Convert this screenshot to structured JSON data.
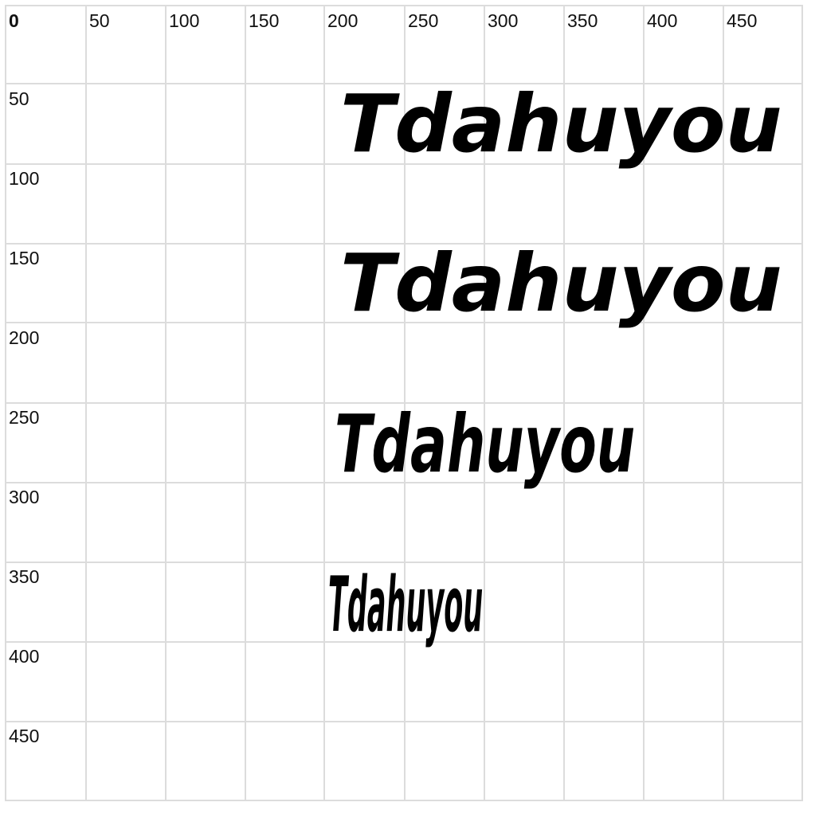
{
  "grid": {
    "x_ticks": [
      "0",
      "50",
      "100",
      "150",
      "200",
      "250",
      "300",
      "350",
      "400",
      "450"
    ],
    "y_ticks": [
      "50",
      "100",
      "150",
      "200",
      "250",
      "300",
      "350",
      "400",
      "450"
    ]
  },
  "samples": [
    {
      "text": "Tdahuyou"
    },
    {
      "text": "Tdahuyou"
    },
    {
      "text": "Tdahuyou"
    },
    {
      "text": "Tdahuyou"
    }
  ]
}
